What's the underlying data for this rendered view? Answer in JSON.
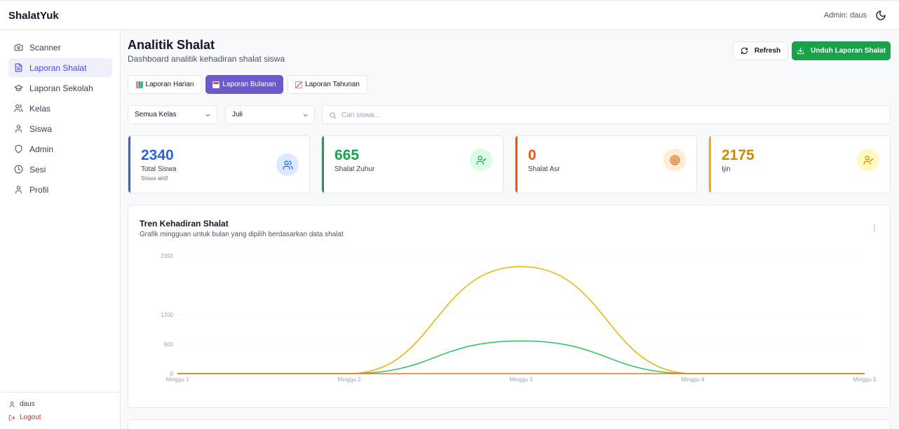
{
  "app": {
    "brand": "ShalatYuk",
    "admin_label": "Admin: daus"
  },
  "sidebar": {
    "items": [
      {
        "label": "Scanner",
        "icon": "camera-icon"
      },
      {
        "label": "Laporan Shalat",
        "icon": "file-text-icon",
        "active": true
      },
      {
        "label": "Laporan Sekolah",
        "icon": "graduation-cap-icon"
      },
      {
        "label": "Kelas",
        "icon": "users-icon"
      },
      {
        "label": "Siswa",
        "icon": "user-icon"
      },
      {
        "label": "Admin",
        "icon": "shield-icon"
      },
      {
        "label": "Sesi",
        "icon": "clock-icon"
      },
      {
        "label": "Profil",
        "icon": "user-icon"
      }
    ],
    "footer": {
      "user": "daus",
      "logout": "Logout"
    }
  },
  "header": {
    "title": "Analitik Shalat",
    "subtitle": "Dashboard analitik kehadiran shalat siswa",
    "refresh_label": "Refresh",
    "download_label": "Unduh Laporan Shalat"
  },
  "tabs": [
    {
      "label": "Laporan Harian",
      "icon": "bar-chart-emoji-icon"
    },
    {
      "label": "Laporan Bulanan",
      "icon": "calendar-emoji-icon",
      "active": true
    },
    {
      "label": "Laporan Tahunan",
      "icon": "trend-chart-emoji-icon"
    }
  ],
  "filters": {
    "kelas": "Semua Kelas",
    "bulan": "Juli",
    "search_placeholder": "Cari siswa..."
  },
  "cards": [
    {
      "value": "2340",
      "label": "Total Siswa",
      "sub": "Siswa aktif",
      "color": "#2563eb"
    },
    {
      "value": "665",
      "label": "Shalat Zuhur",
      "sub": "",
      "color": "#16a34a"
    },
    {
      "value": "0",
      "label": "Shalat Asr",
      "sub": "",
      "color": "#ea580c"
    },
    {
      "value": "2175",
      "label": "Ijin",
      "sub": "",
      "color": "#ca8a04"
    }
  ],
  "chart": {
    "title": "Tren Kehadiran Shalat",
    "subtitle": "Grafik mingguan untuk bulan yang dipilih berdasarkan data shalat"
  },
  "chart_data": {
    "type": "line",
    "categories": [
      "Minggu 1",
      "Minggu 2",
      "Minggu 3",
      "Minggu 4",
      "Minggu 5"
    ],
    "y_ticks": [
      "0",
      "600",
      "1200",
      "2393"
    ],
    "ylim": [
      0,
      2393
    ],
    "series": [
      {
        "name": "Ijin",
        "color": "#eab308",
        "values": [
          0,
          0,
          2175,
          0,
          0
        ]
      },
      {
        "name": "Shalat Zuhur",
        "color": "#22c55e",
        "values": [
          0,
          0,
          665,
          0,
          0
        ]
      },
      {
        "name": "Shalat Asr",
        "color": "#f97316",
        "values": [
          0,
          0,
          0,
          0,
          0
        ]
      }
    ]
  }
}
